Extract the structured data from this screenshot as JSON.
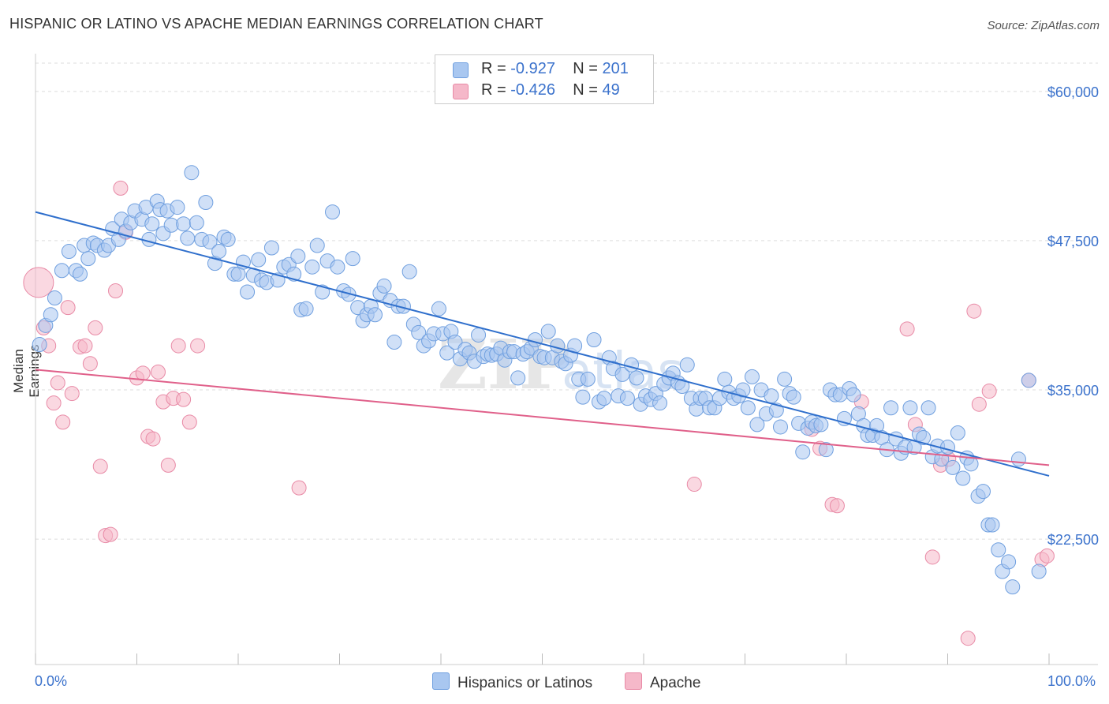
{
  "header": {
    "title": "HISPANIC OR LATINO VS APACHE MEDIAN EARNINGS CORRELATION CHART",
    "source": "Source: ZipAtlas.com"
  },
  "legend": {
    "rows": [
      {
        "r_label": "R = ",
        "r_value": "-0.927",
        "n_label": "N = ",
        "n_value": "201",
        "color": "#a9c7f0"
      },
      {
        "r_label": "R = ",
        "r_value": "-0.426",
        "n_label": "N = ",
        "n_value": "49",
        "color": "#f5b8c9"
      }
    ],
    "bottom": [
      {
        "label": "Hispanics or Latinos",
        "color": "#a9c7f0"
      },
      {
        "label": "Apache",
        "color": "#f5b8c9"
      }
    ]
  },
  "colors": {
    "blue_fill": "#a9c7f0",
    "blue_stroke": "#6f9fdf",
    "blue_line": "#2f6fcc",
    "pink_fill": "#f5b8c9",
    "pink_stroke": "#e88aa6",
    "pink_line": "#e0608a",
    "grid": "#dddddd",
    "axis_text": "#3b72cc",
    "watermark": "#e6e6e6"
  },
  "watermark": {
    "zip": "ZIP",
    "atlas": "atlas"
  },
  "chart_data": {
    "type": "scatter",
    "title": "HISPANIC OR LATINO VS APACHE MEDIAN EARNINGS CORRELATION CHART",
    "xlabel": "",
    "ylabel": "Median Earnings",
    "xlim": [
      0,
      100
    ],
    "ylim": [
      12000,
      62500
    ],
    "x_tick_labels": [
      "0.0%",
      "100.0%"
    ],
    "y_ticks": [
      22500,
      35000,
      47500,
      60000
    ],
    "y_tick_labels": [
      "$22,500",
      "$35,000",
      "$47,500",
      "$60,000"
    ],
    "grid": true,
    "legend_position": "top-center",
    "series": [
      {
        "name": "Hispanics or Latinos",
        "r": -0.927,
        "n": 201,
        "trend": {
          "x": [
            0,
            100
          ],
          "y": [
            49900,
            27800
          ]
        },
        "points": [
          [
            0.4,
            38800
          ],
          [
            1.0,
            40400
          ],
          [
            1.5,
            41300
          ],
          [
            1.9,
            42700
          ],
          [
            2.6,
            45000
          ],
          [
            3.3,
            46600
          ],
          [
            4.0,
            45000
          ],
          [
            4.4,
            44700
          ],
          [
            4.8,
            47100
          ],
          [
            5.2,
            46000
          ],
          [
            5.7,
            47300
          ],
          [
            6.1,
            47100
          ],
          [
            6.8,
            46700
          ],
          [
            7.2,
            47100
          ],
          [
            7.6,
            48500
          ],
          [
            8.2,
            47600
          ],
          [
            8.5,
            49300
          ],
          [
            8.9,
            48300
          ],
          [
            9.4,
            49000
          ],
          [
            9.8,
            50000
          ],
          [
            10.5,
            49300
          ],
          [
            10.9,
            50300
          ],
          [
            11.2,
            47600
          ],
          [
            11.5,
            48900
          ],
          [
            12.0,
            50800
          ],
          [
            12.3,
            50100
          ],
          [
            12.6,
            48100
          ],
          [
            13.0,
            50000
          ],
          [
            13.4,
            48800
          ],
          [
            14.0,
            50300
          ],
          [
            14.6,
            48900
          ],
          [
            15.0,
            47700
          ],
          [
            15.4,
            53200
          ],
          [
            15.9,
            49000
          ],
          [
            16.4,
            47600
          ],
          [
            16.8,
            50700
          ],
          [
            17.2,
            47400
          ],
          [
            17.7,
            45600
          ],
          [
            18.1,
            46600
          ],
          [
            18.6,
            47800
          ],
          [
            19.0,
            47600
          ],
          [
            19.6,
            44700
          ],
          [
            20.0,
            44700
          ],
          [
            20.5,
            45700
          ],
          [
            20.9,
            43200
          ],
          [
            21.5,
            44600
          ],
          [
            22.0,
            45900
          ],
          [
            22.3,
            44200
          ],
          [
            22.8,
            44000
          ],
          [
            23.3,
            46900
          ],
          [
            23.9,
            44200
          ],
          [
            24.5,
            45300
          ],
          [
            25.0,
            45500
          ],
          [
            25.5,
            44700
          ],
          [
            25.9,
            46200
          ],
          [
            26.2,
            41700
          ],
          [
            26.7,
            41800
          ],
          [
            27.3,
            45300
          ],
          [
            27.8,
            47100
          ],
          [
            28.3,
            43200
          ],
          [
            28.8,
            45800
          ],
          [
            29.3,
            49900
          ],
          [
            29.8,
            45300
          ],
          [
            30.4,
            43300
          ],
          [
            30.9,
            43000
          ],
          [
            31.3,
            46000
          ],
          [
            31.8,
            41900
          ],
          [
            32.3,
            40800
          ],
          [
            32.7,
            41300
          ],
          [
            33.1,
            42000
          ],
          [
            33.5,
            41300
          ],
          [
            34.0,
            43100
          ],
          [
            34.4,
            43700
          ],
          [
            35.0,
            42500
          ],
          [
            35.4,
            39000
          ],
          [
            35.8,
            42000
          ],
          [
            36.3,
            42000
          ],
          [
            36.9,
            44900
          ],
          [
            37.3,
            40500
          ],
          [
            37.8,
            39800
          ],
          [
            38.3,
            38700
          ],
          [
            38.8,
            39100
          ],
          [
            39.3,
            39700
          ],
          [
            39.8,
            41800
          ],
          [
            40.2,
            39700
          ],
          [
            40.6,
            38100
          ],
          [
            41.0,
            39900
          ],
          [
            41.4,
            39000
          ],
          [
            41.9,
            37600
          ],
          [
            42.4,
            38400
          ],
          [
            42.8,
            38100
          ],
          [
            43.3,
            37400
          ],
          [
            43.7,
            39600
          ],
          [
            44.2,
            37800
          ],
          [
            44.6,
            38000
          ],
          [
            45.0,
            37900
          ],
          [
            45.5,
            38000
          ],
          [
            45.9,
            38500
          ],
          [
            46.3,
            37500
          ],
          [
            46.8,
            38200
          ],
          [
            47.2,
            38200
          ],
          [
            47.6,
            36000
          ],
          [
            48.1,
            38000
          ],
          [
            48.5,
            38200
          ],
          [
            48.9,
            38500
          ],
          [
            49.3,
            39200
          ],
          [
            49.8,
            37800
          ],
          [
            50.2,
            37700
          ],
          [
            50.6,
            39900
          ],
          [
            51.0,
            37700
          ],
          [
            51.5,
            38700
          ],
          [
            51.9,
            37400
          ],
          [
            52.3,
            37200
          ],
          [
            52.8,
            37900
          ],
          [
            53.2,
            38700
          ],
          [
            53.6,
            35900
          ],
          [
            54.0,
            34400
          ],
          [
            54.5,
            35900
          ],
          [
            55.1,
            39200
          ],
          [
            55.6,
            34000
          ],
          [
            56.1,
            34300
          ],
          [
            56.6,
            37700
          ],
          [
            57.0,
            36800
          ],
          [
            57.5,
            34500
          ],
          [
            57.9,
            36300
          ],
          [
            58.4,
            34300
          ],
          [
            58.8,
            37100
          ],
          [
            59.3,
            36000
          ],
          [
            59.7,
            33800
          ],
          [
            60.2,
            34500
          ],
          [
            60.7,
            34200
          ],
          [
            61.2,
            34700
          ],
          [
            61.6,
            33900
          ],
          [
            62.0,
            35500
          ],
          [
            62.5,
            36000
          ],
          [
            62.9,
            36400
          ],
          [
            63.4,
            35600
          ],
          [
            63.8,
            35300
          ],
          [
            64.3,
            37100
          ],
          [
            64.7,
            34300
          ],
          [
            65.2,
            33400
          ],
          [
            65.6,
            34300
          ],
          [
            66.1,
            34300
          ],
          [
            66.5,
            33500
          ],
          [
            67.0,
            33500
          ],
          [
            67.5,
            34300
          ],
          [
            68.0,
            35900
          ],
          [
            68.4,
            34800
          ],
          [
            68.9,
            34300
          ],
          [
            69.4,
            34500
          ],
          [
            69.8,
            35000
          ],
          [
            70.3,
            33500
          ],
          [
            70.7,
            36100
          ],
          [
            71.2,
            32100
          ],
          [
            71.6,
            35000
          ],
          [
            72.1,
            33000
          ],
          [
            72.6,
            34500
          ],
          [
            73.1,
            33300
          ],
          [
            73.5,
            31900
          ],
          [
            73.9,
            35900
          ],
          [
            74.4,
            34700
          ],
          [
            74.8,
            34400
          ],
          [
            75.3,
            32200
          ],
          [
            75.7,
            29800
          ],
          [
            76.2,
            31800
          ],
          [
            76.6,
            32300
          ],
          [
            77.0,
            32000
          ],
          [
            77.5,
            32100
          ],
          [
            78.0,
            30000
          ],
          [
            78.4,
            35000
          ],
          [
            78.9,
            34600
          ],
          [
            79.4,
            34600
          ],
          [
            79.8,
            32600
          ],
          [
            80.3,
            35100
          ],
          [
            80.7,
            34600
          ],
          [
            81.2,
            33000
          ],
          [
            81.7,
            32000
          ],
          [
            82.1,
            31200
          ],
          [
            82.6,
            31200
          ],
          [
            83.0,
            32000
          ],
          [
            83.5,
            31000
          ],
          [
            84.0,
            30000
          ],
          [
            84.4,
            33500
          ],
          [
            84.9,
            30900
          ],
          [
            85.4,
            29700
          ],
          [
            85.8,
            30200
          ],
          [
            86.3,
            33500
          ],
          [
            86.7,
            30200
          ],
          [
            87.2,
            31300
          ],
          [
            87.6,
            31000
          ],
          [
            88.1,
            33500
          ],
          [
            88.5,
            29400
          ],
          [
            89.0,
            30300
          ],
          [
            89.4,
            29200
          ],
          [
            90.0,
            30200
          ],
          [
            90.5,
            28500
          ],
          [
            91.0,
            31400
          ],
          [
            91.5,
            27600
          ],
          [
            91.9,
            29300
          ],
          [
            92.3,
            28800
          ],
          [
            93.0,
            26100
          ],
          [
            93.5,
            26500
          ],
          [
            94.0,
            23700
          ],
          [
            94.4,
            23700
          ],
          [
            95.0,
            21600
          ],
          [
            95.4,
            19800
          ],
          [
            96.0,
            20600
          ],
          [
            96.4,
            18500
          ],
          [
            97.0,
            29200
          ],
          [
            98.0,
            35800
          ],
          [
            99.0,
            19800
          ]
        ]
      },
      {
        "name": "Apache",
        "r": -0.426,
        "n": 49,
        "trend": {
          "x": [
            0,
            100
          ],
          "y": [
            36700,
            28700
          ]
        },
        "points": [
          [
            0.3,
            44000
          ],
          [
            0.8,
            40200
          ],
          [
            1.3,
            38700
          ],
          [
            1.8,
            33900
          ],
          [
            2.2,
            35600
          ],
          [
            2.7,
            32300
          ],
          [
            3.2,
            41900
          ],
          [
            3.6,
            34700
          ],
          [
            4.4,
            38600
          ],
          [
            4.9,
            38700
          ],
          [
            5.4,
            37200
          ],
          [
            5.9,
            40200
          ],
          [
            6.4,
            28600
          ],
          [
            6.9,
            22800
          ],
          [
            7.4,
            22900
          ],
          [
            7.9,
            43300
          ],
          [
            8.4,
            51900
          ],
          [
            8.9,
            48200
          ],
          [
            10.0,
            36000
          ],
          [
            10.6,
            36400
          ],
          [
            11.1,
            31100
          ],
          [
            11.6,
            30900
          ],
          [
            12.1,
            36500
          ],
          [
            12.6,
            34000
          ],
          [
            13.1,
            28700
          ],
          [
            13.6,
            34300
          ],
          [
            14.1,
            38700
          ],
          [
            14.6,
            34200
          ],
          [
            15.2,
            32300
          ],
          [
            16.0,
            38700
          ],
          [
            26.0,
            26800
          ],
          [
            65.0,
            27100
          ],
          [
            76.6,
            31700
          ],
          [
            77.4,
            30100
          ],
          [
            78.6,
            25400
          ],
          [
            79.1,
            25300
          ],
          [
            81.5,
            34000
          ],
          [
            86.0,
            40100
          ],
          [
            86.8,
            32100
          ],
          [
            88.5,
            21000
          ],
          [
            89.3,
            28700
          ],
          [
            90.1,
            29200
          ],
          [
            92.0,
            14200
          ],
          [
            92.6,
            41600
          ],
          [
            93.1,
            33800
          ],
          [
            94.1,
            34900
          ],
          [
            98.0,
            35800
          ],
          [
            99.3,
            20800
          ],
          [
            99.8,
            21100
          ]
        ]
      }
    ]
  }
}
